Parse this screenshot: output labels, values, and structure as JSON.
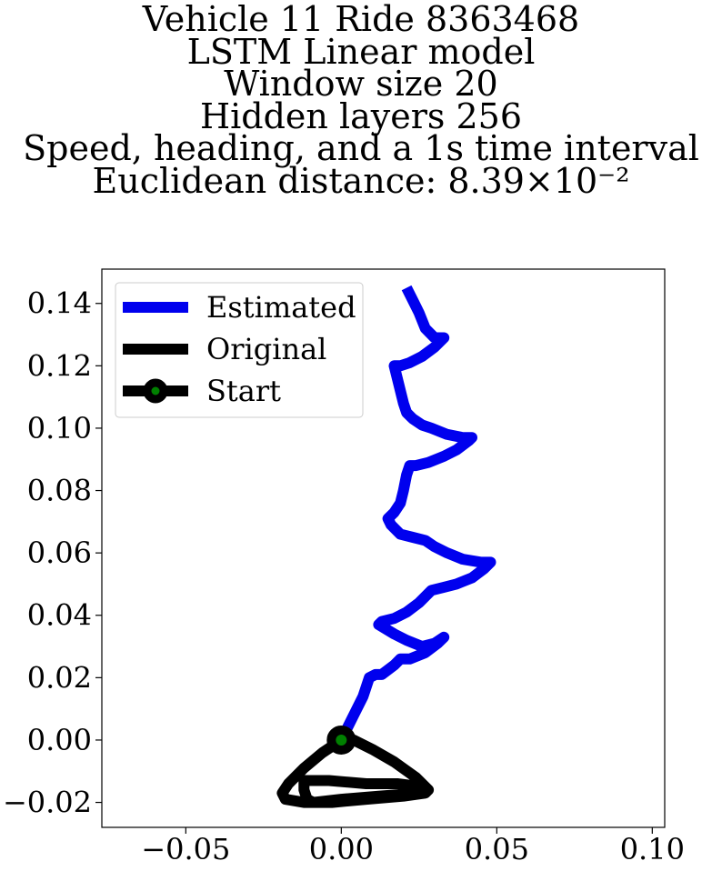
{
  "chart_data": {
    "type": "line",
    "title_lines": [
      "Vehicle 11 Ride 8363468",
      "LSTM Linear model",
      "Window size 20",
      "Hidden layers 256",
      "Speed, heading, and a 1s time interval",
      "Euclidean distance: 8.39×10⁻²"
    ],
    "xlabel": "",
    "ylabel": "",
    "xlim": [
      -0.077,
      0.104
    ],
    "ylim": [
      -0.028,
      0.151
    ],
    "x_ticks": [
      -0.05,
      0.0,
      0.05,
      0.1
    ],
    "x_tick_labels": [
      "−0.05",
      "0.00",
      "0.05",
      "0.10"
    ],
    "y_ticks": [
      -0.02,
      0.0,
      0.02,
      0.04,
      0.06,
      0.08,
      0.1,
      0.12,
      0.14
    ],
    "y_tick_labels": [
      "−0.02",
      "0.00",
      "0.02",
      "0.04",
      "0.06",
      "0.08",
      "0.10",
      "0.12",
      "0.14"
    ],
    "grid": false,
    "legend_position": "top-left",
    "series": [
      {
        "name": "Estimated",
        "color": "#0000ee",
        "points": [
          [
            0.0,
            0.0
          ],
          [
            0.004,
            0.008
          ],
          [
            0.007,
            0.014
          ],
          [
            0.009,
            0.02
          ],
          [
            0.011,
            0.021
          ],
          [
            0.013,
            0.021
          ],
          [
            0.017,
            0.024
          ],
          [
            0.019,
            0.026
          ],
          [
            0.022,
            0.026
          ],
          [
            0.027,
            0.028
          ],
          [
            0.031,
            0.031
          ],
          [
            0.033,
            0.033
          ],
          [
            0.03,
            0.031
          ],
          [
            0.026,
            0.03
          ],
          [
            0.021,
            0.032
          ],
          [
            0.017,
            0.034
          ],
          [
            0.012,
            0.037
          ],
          [
            0.013,
            0.038
          ],
          [
            0.017,
            0.039
          ],
          [
            0.021,
            0.041
          ],
          [
            0.025,
            0.044
          ],
          [
            0.029,
            0.048
          ],
          [
            0.033,
            0.049
          ],
          [
            0.037,
            0.05
          ],
          [
            0.042,
            0.052
          ],
          [
            0.046,
            0.055
          ],
          [
            0.048,
            0.057
          ],
          [
            0.045,
            0.057
          ],
          [
            0.039,
            0.058
          ],
          [
            0.034,
            0.06
          ],
          [
            0.03,
            0.062
          ],
          [
            0.027,
            0.064
          ],
          [
            0.023,
            0.065
          ],
          [
            0.019,
            0.066
          ],
          [
            0.016,
            0.069
          ],
          [
            0.015,
            0.071
          ],
          [
            0.017,
            0.073
          ],
          [
            0.019,
            0.076
          ],
          [
            0.02,
            0.08
          ],
          [
            0.021,
            0.085
          ],
          [
            0.022,
            0.088
          ],
          [
            0.024,
            0.088
          ],
          [
            0.028,
            0.089
          ],
          [
            0.033,
            0.091
          ],
          [
            0.037,
            0.093
          ],
          [
            0.041,
            0.096
          ],
          [
            0.042,
            0.097
          ],
          [
            0.039,
            0.097
          ],
          [
            0.034,
            0.098
          ],
          [
            0.029,
            0.1
          ],
          [
            0.026,
            0.101
          ],
          [
            0.023,
            0.103
          ],
          [
            0.021,
            0.105
          ],
          [
            0.02,
            0.108
          ],
          [
            0.019,
            0.112
          ],
          [
            0.018,
            0.116
          ],
          [
            0.017,
            0.12
          ],
          [
            0.019,
            0.12
          ],
          [
            0.022,
            0.121
          ],
          [
            0.026,
            0.123
          ],
          [
            0.03,
            0.126
          ],
          [
            0.033,
            0.129
          ],
          [
            0.03,
            0.129
          ],
          [
            0.027,
            0.132
          ],
          [
            0.025,
            0.137
          ],
          [
            0.023,
            0.141
          ],
          [
            0.021,
            0.145
          ]
        ]
      },
      {
        "name": "Original",
        "color": "#000000",
        "points": [
          [
            0.0,
            0.0
          ],
          [
            -0.006,
            -0.004
          ],
          [
            -0.012,
            -0.009
          ],
          [
            -0.017,
            -0.014
          ],
          [
            -0.019,
            -0.017
          ],
          [
            -0.018,
            -0.019
          ],
          [
            -0.012,
            -0.02
          ],
          [
            -0.003,
            -0.02
          ],
          [
            0.008,
            -0.019
          ],
          [
            0.02,
            -0.018
          ],
          [
            0.027,
            -0.017
          ],
          [
            0.028,
            -0.016
          ],
          [
            0.026,
            -0.015
          ],
          [
            0.018,
            -0.014
          ],
          [
            0.008,
            -0.014
          ],
          [
            -0.004,
            -0.013
          ],
          [
            -0.012,
            -0.013
          ],
          [
            -0.012,
            -0.016
          ],
          [
            -0.011,
            -0.019
          ],
          [
            -0.009,
            -0.02
          ],
          [
            0.0,
            -0.019
          ],
          [
            0.012,
            -0.018
          ],
          [
            0.025,
            -0.017
          ],
          [
            0.028,
            -0.016
          ],
          [
            0.024,
            -0.012
          ],
          [
            0.017,
            -0.007
          ],
          [
            0.01,
            -0.003
          ],
          [
            0.004,
            0.0
          ],
          [
            0.0,
            0.0
          ]
        ]
      }
    ],
    "start_marker": {
      "name": "Start",
      "x": 0.0,
      "y": 0.0,
      "fill": "#008000",
      "edge": "#000000"
    }
  }
}
